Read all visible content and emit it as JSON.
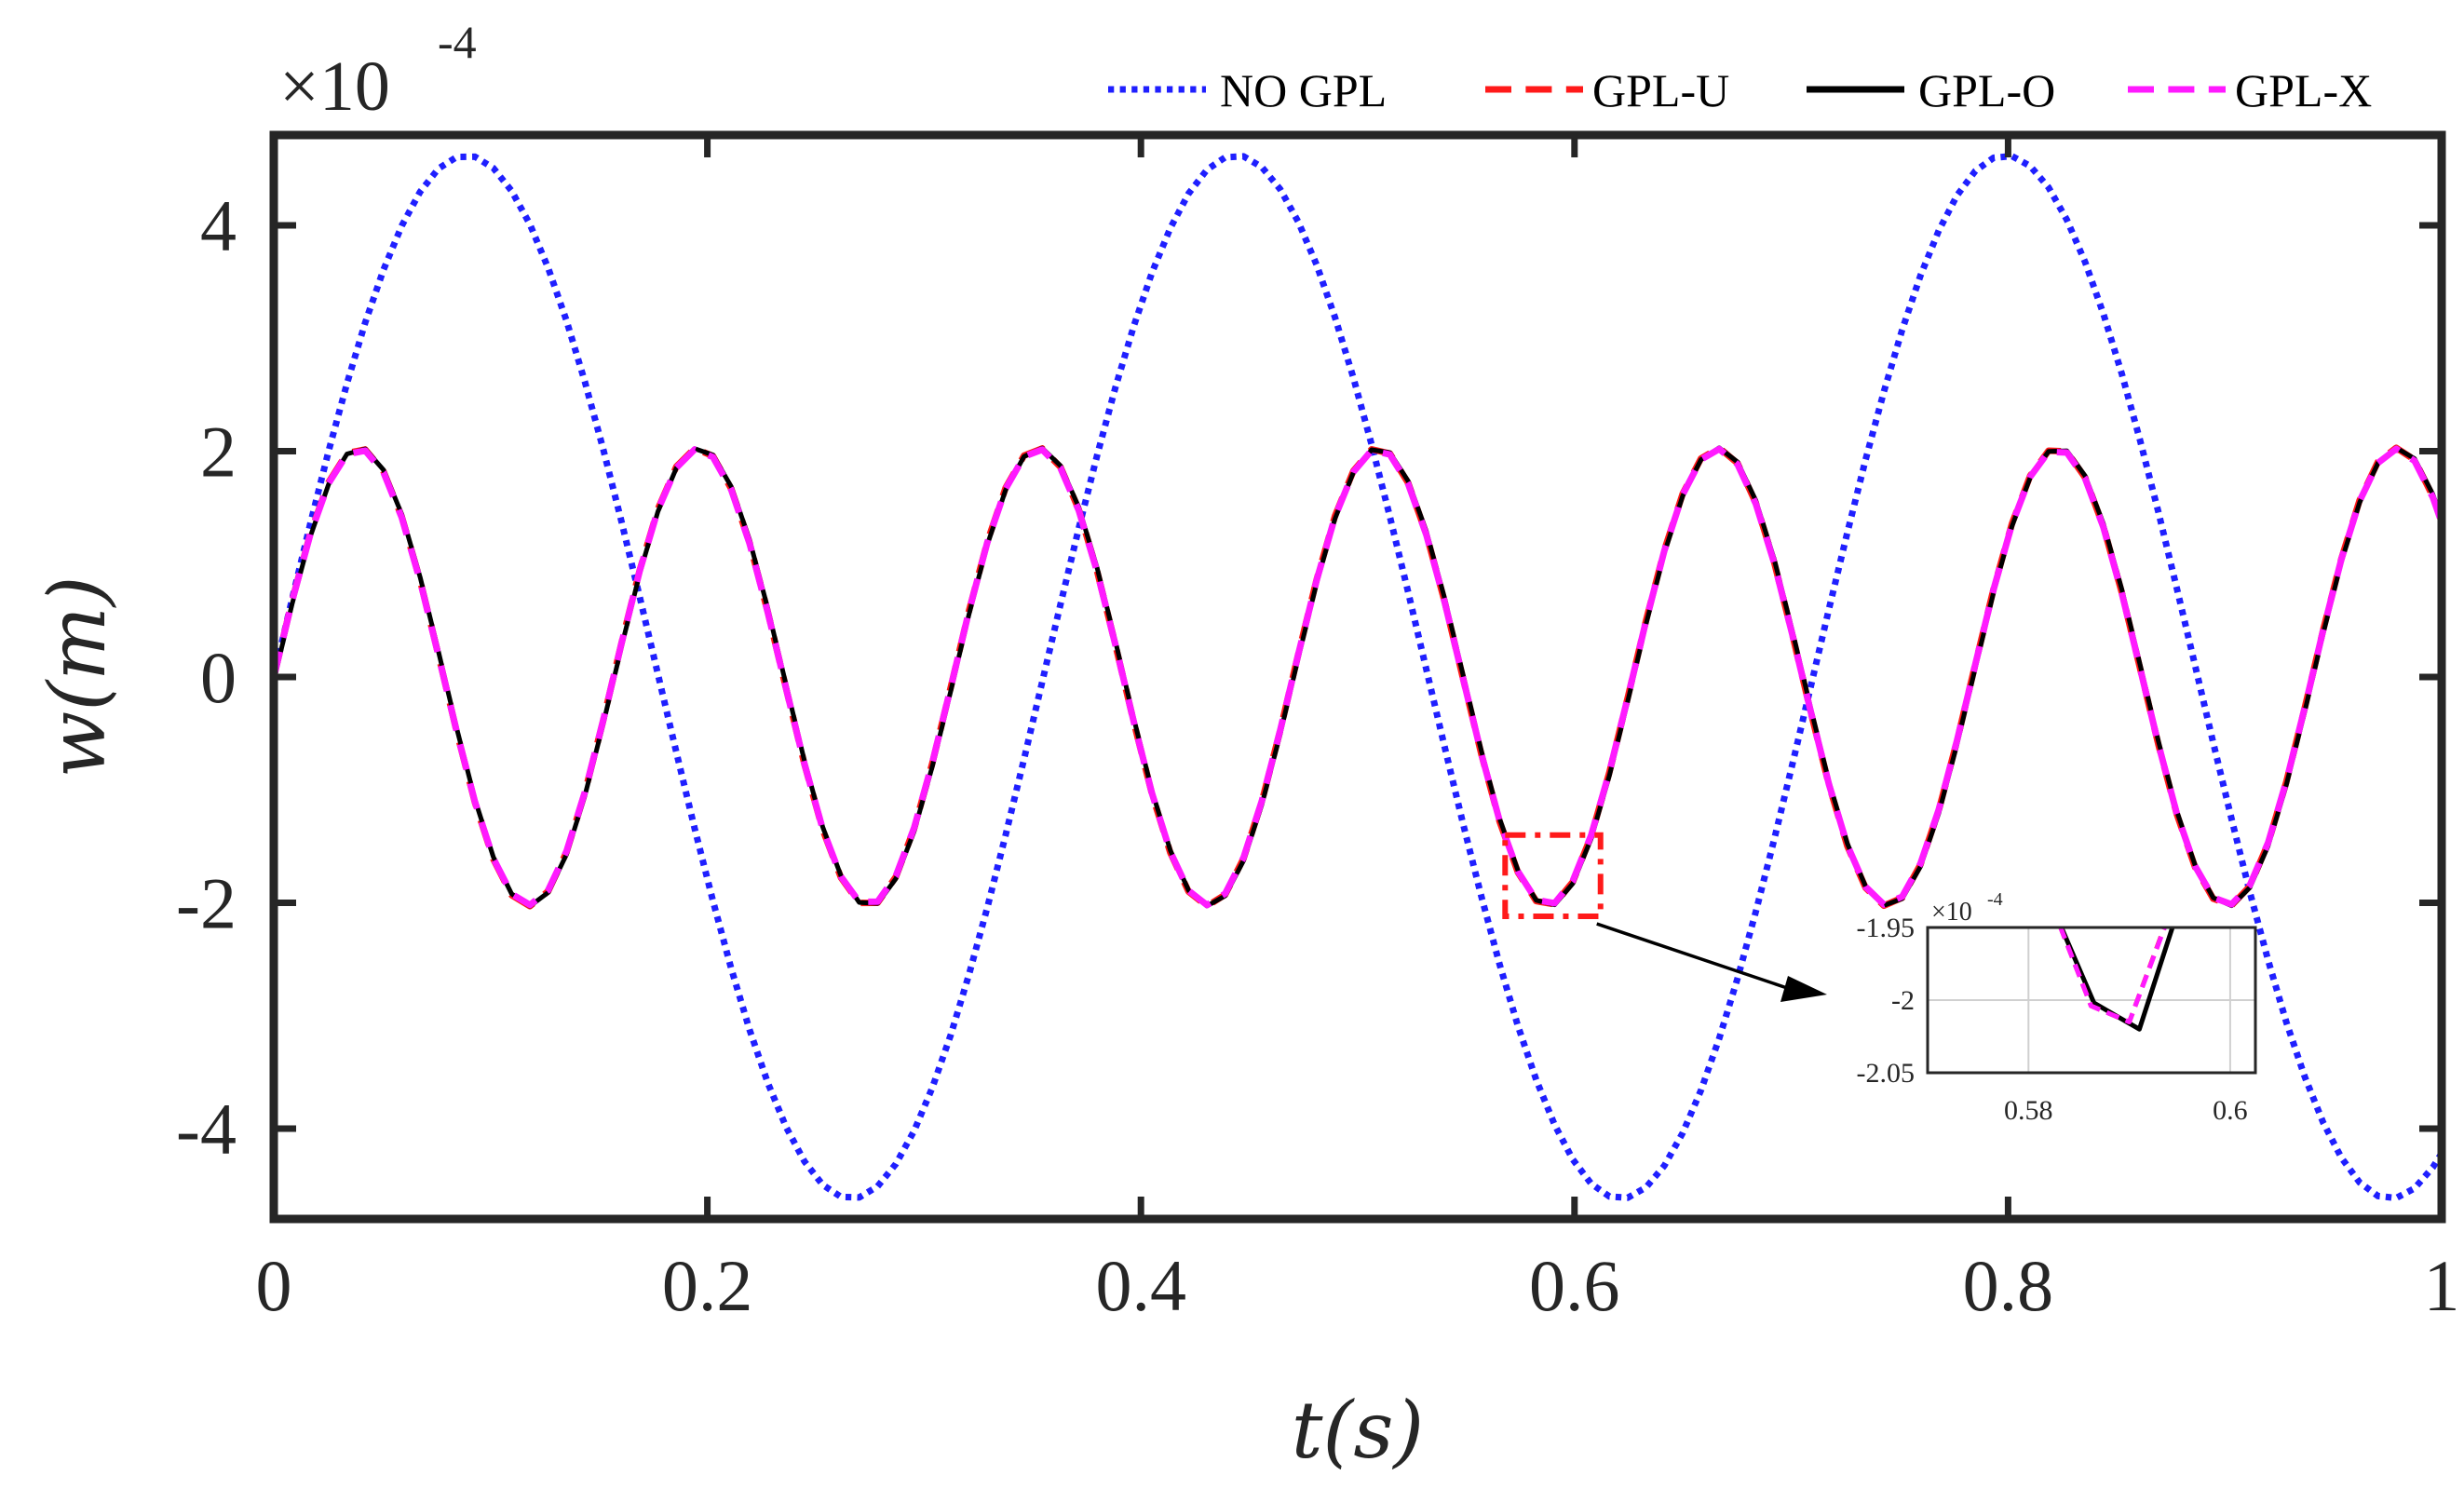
{
  "chart_data": {
    "type": "line",
    "title": "",
    "xlabel": "t(s)",
    "ylabel": "w(m)",
    "xlim": [
      0,
      1
    ],
    "ylim": [
      -4.8,
      4.8
    ],
    "y_scale_label": {
      "base": "×10",
      "exponent": "-4"
    },
    "x_ticks": [
      0,
      0.2,
      0.4,
      0.6,
      0.8,
      1
    ],
    "x_tick_labels": [
      "0",
      "0.2",
      "0.4",
      "0.6",
      "0.8",
      "1"
    ],
    "y_ticks": [
      -4,
      -2,
      0,
      2,
      4
    ],
    "y_tick_labels": [
      "-4",
      "-2",
      "0",
      "2",
      "4"
    ],
    "legend_position": "top-right, outside above the axes",
    "series": [
      {
        "name": "NO GPL",
        "color": "#1f1fff",
        "style": "dotted",
        "amplitude": 4.62,
        "period": 0.355,
        "phase": 0,
        "sample_dt": 0.00844
      },
      {
        "name": "GPL-U",
        "color": "#ff1a1a",
        "style": "dashed",
        "amplitude": 2.03,
        "period": 0.1567,
        "phase": 0,
        "sample_dt": 0.00844
      },
      {
        "name": "GPL-O",
        "color": "#000000",
        "style": "solid",
        "amplitude": 2.03,
        "period": 0.1567,
        "phase": 0.0004,
        "sample_dt": 0.00844
      },
      {
        "name": "GPL-X",
        "color": "#ff1aff",
        "style": "dashed",
        "amplitude": 2.02,
        "period": 0.1567,
        "phase": 0,
        "sample_dt": 0.00844
      }
    ],
    "zoom_box": {
      "xlim": [
        0.568,
        0.612
      ],
      "ylim": [
        -2.12,
        -1.4
      ],
      "color": "#ff1a1a"
    },
    "inset": {
      "xlim": [
        0.57,
        0.6025
      ],
      "ylim": [
        -2.05,
        -1.95
      ],
      "x_ticks": [
        0.58,
        0.6
      ],
      "x_tick_labels": [
        "0.58",
        "0.6"
      ],
      "y_ticks": [
        -1.95,
        -2,
        -2.05
      ],
      "y_tick_labels": [
        "-1.95",
        "-2",
        "-2.05"
      ],
      "y_scale_label": {
        "base": "×10",
        "exponent": "-4"
      },
      "series": [
        {
          "name": "GPL-O",
          "color": "#000000",
          "x": [
            0.5824,
            0.5865,
            0.591,
            0.5945
          ],
          "y": [
            -1.936,
            -2.002,
            -2.02,
            -1.945
          ]
        },
        {
          "name": "GPL-U",
          "color": "#ff1a1a",
          "x": [
            0.5824,
            0.5862,
            0.59,
            0.594
          ],
          "y": [
            -1.936,
            -2.004,
            -2.015,
            -1.94
          ]
        },
        {
          "name": "GPL-X",
          "color": "#ff1aff",
          "x": [
            0.5824,
            0.5862,
            0.59,
            0.5935
          ],
          "y": [
            -1.936,
            -2.004,
            -2.015,
            -1.95
          ]
        }
      ]
    }
  }
}
